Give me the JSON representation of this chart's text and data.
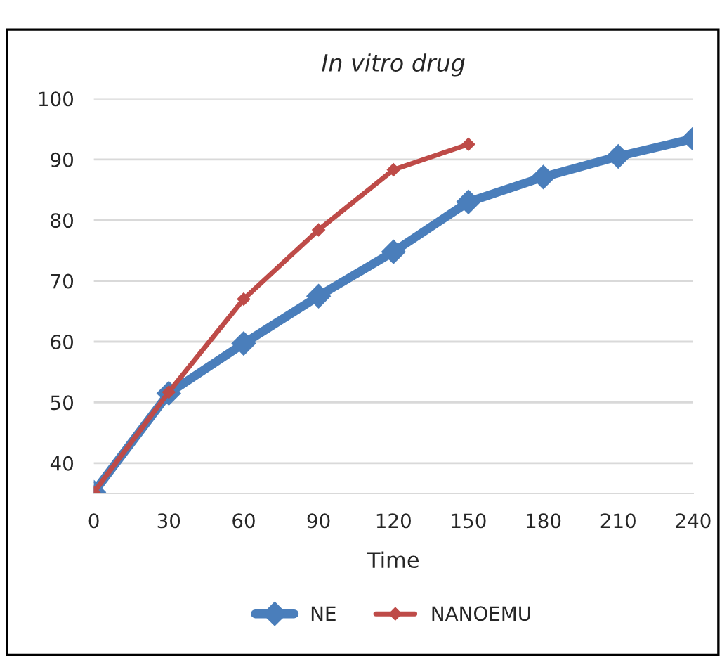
{
  "chart_data": {
    "type": "line",
    "title": "In vitro drug",
    "xlabel": "Time",
    "x": [
      0,
      30,
      60,
      90,
      120,
      150,
      180,
      210,
      240
    ],
    "series": [
      {
        "name": "NE",
        "color": "#4a7ebb",
        "values": [
          35.2,
          51.5,
          59.7,
          67.5,
          74.8,
          83.0,
          87.1,
          90.5,
          93.4
        ]
      },
      {
        "name": "NANOEMU",
        "color": "#be4b48",
        "values": [
          35.2,
          51.7,
          67.0,
          78.4,
          88.3,
          92.5,
          null,
          null,
          null
        ]
      }
    ],
    "xlim": [
      0,
      240
    ],
    "xticks": [
      0,
      30,
      60,
      90,
      120,
      150,
      180,
      210,
      240
    ],
    "ylim": [
      35,
      100
    ],
    "yticks": [
      40,
      50,
      60,
      70,
      80,
      90,
      100
    ],
    "grid": "y",
    "legend": "bottom",
    "marker": "diamond",
    "line_style": "solid"
  }
}
